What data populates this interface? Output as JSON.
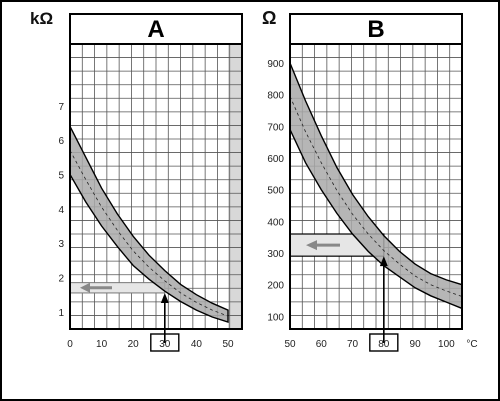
{
  "chart_data": [
    {
      "type": "area",
      "panel_label": "A",
      "y_unit": "kΩ",
      "x_ticks": [
        "0",
        "10",
        "20",
        "30",
        "40",
        "50"
      ],
      "y_ticks": [
        "1",
        "2",
        "3",
        "4",
        "5",
        "6",
        "7"
      ],
      "xlim": [
        0,
        50
      ],
      "ylim": [
        0.5,
        8.8
      ],
      "grid": true,
      "band": {
        "x": [
          0,
          5,
          10,
          15,
          20,
          25,
          30,
          35,
          40,
          45,
          50
        ],
        "upper": [
          6.4,
          5.5,
          4.6,
          3.85,
          3.2,
          2.65,
          2.2,
          1.8,
          1.5,
          1.25,
          1.05
        ],
        "lower": [
          5.0,
          4.2,
          3.5,
          2.9,
          2.35,
          1.95,
          1.6,
          1.3,
          1.05,
          0.85,
          0.7
        ]
      },
      "highlighted_x": "30",
      "read_value": 1.7
    },
    {
      "type": "area",
      "panel_label": "B",
      "y_unit": "Ω",
      "x_ticks": [
        "50",
        "60",
        "70",
        "80",
        "90",
        "100"
      ],
      "x_unit": "°C",
      "y_ticks": [
        "100",
        "200",
        "300",
        "400",
        "500",
        "600",
        "700",
        "800",
        "900"
      ],
      "xlim": [
        50,
        105
      ],
      "ylim": [
        60,
        960
      ],
      "grid": true,
      "band": {
        "x": [
          50,
          55,
          60,
          65,
          70,
          75,
          80,
          85,
          90,
          95,
          100,
          105
        ],
        "upper": [
          900,
          780,
          670,
          570,
          485,
          415,
          355,
          305,
          265,
          235,
          215,
          200
        ],
        "lower": [
          690,
          585,
          500,
          425,
          360,
          305,
          260,
          225,
          190,
          165,
          145,
          125
        ]
      },
      "highlighted_x": "80",
      "read_range": [
        290,
        360
      ]
    }
  ]
}
